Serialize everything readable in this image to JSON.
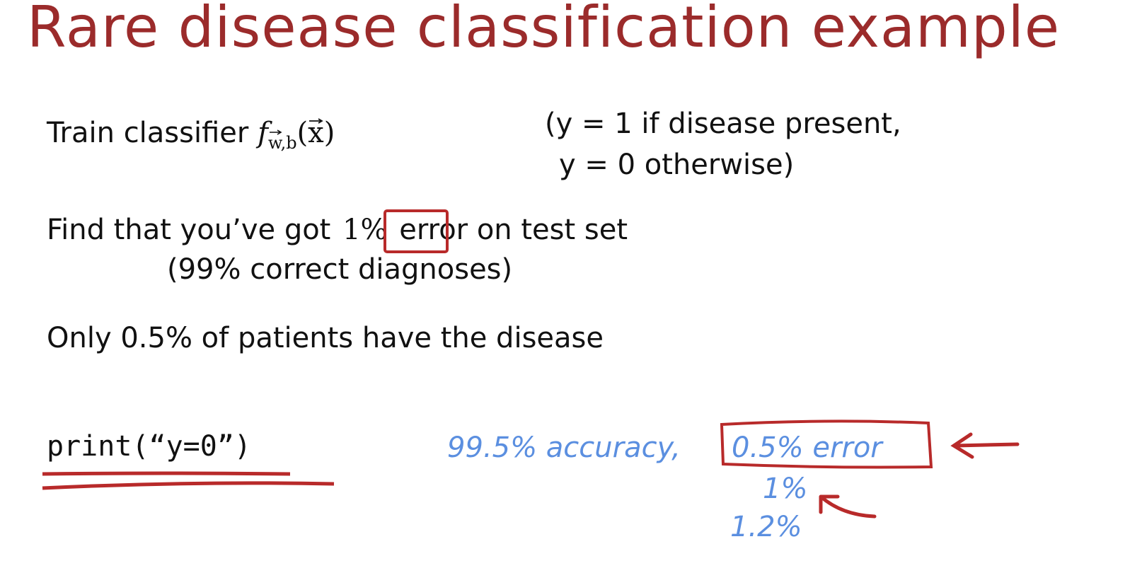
{
  "slide": {
    "title": "Rare disease classification example",
    "line1": {
      "text": "Train classifier ",
      "func": "f",
      "sub": "w,b",
      "arg": "(x)"
    },
    "label_def": {
      "line1": "(y = 1 if disease present,",
      "line2": "y = 0 otherwise)"
    },
    "line2": {
      "pre": "Find that you’ve got ",
      "boxed": "1%",
      "post": " error on test set"
    },
    "line2b": "(99% correct diagnoses)",
    "line3": "Only 0.5% of patients have the disease",
    "code": "print(“y=0”)"
  },
  "annotations": {
    "accuracy": "99.5% accuracy,",
    "error": "0.5% error",
    "alt1": "1%",
    "alt2": "1.2%"
  },
  "colors": {
    "title": "#9b2b2b",
    "handwriting_blue": "#5b8fe0",
    "handwriting_red": "#b82a2a"
  }
}
